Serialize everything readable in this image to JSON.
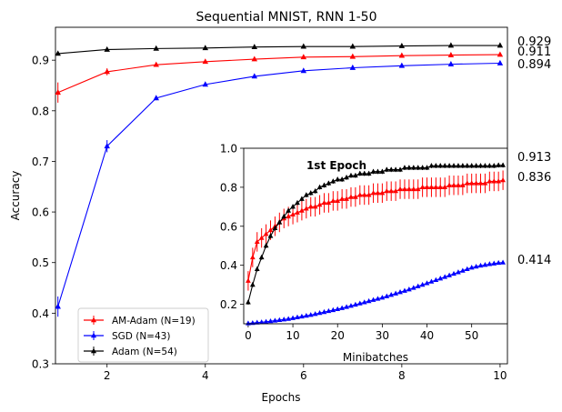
{
  "chart_data": [
    {
      "type": "line",
      "title": "Sequential MNIST, RNN 1-50",
      "xlabel": "Epochs",
      "ylabel": "Accuracy",
      "xlim": [
        0.95,
        10.15
      ],
      "ylim": [
        0.3,
        0.965
      ],
      "xticks": [
        2,
        4,
        6,
        8,
        10
      ],
      "yticks": [
        0.3,
        0.4,
        0.5,
        0.6,
        0.7,
        0.8,
        0.9
      ],
      "x": [
        1,
        2,
        3,
        4,
        5,
        6,
        7,
        8,
        9,
        10
      ],
      "series": [
        {
          "name": "AM-Adam (N=19)",
          "color": "#ff0000",
          "values": [
            0.836,
            0.877,
            0.891,
            0.897,
            0.902,
            0.906,
            0.907,
            0.909,
            0.91,
            0.911
          ],
          "errors": [
            0.02,
            0.007,
            0.004,
            0.003,
            0.003,
            0.003,
            0.002,
            0.002,
            0.002,
            0.002
          ]
        },
        {
          "name": "SGD (N=43)",
          "color": "#0000ff",
          "values": [
            0.413,
            0.73,
            0.825,
            0.852,
            0.868,
            0.879,
            0.885,
            0.889,
            0.892,
            0.894
          ],
          "errors": [
            0.02,
            0.012,
            0.004,
            0.003,
            0.003,
            0.003,
            0.003,
            0.002,
            0.002,
            0.002
          ]
        },
        {
          "name": "Adam (N=54)",
          "color": "#000000",
          "values": [
            0.913,
            0.921,
            0.923,
            0.924,
            0.926,
            0.927,
            0.927,
            0.928,
            0.929,
            0.929
          ],
          "errors": [
            0.003,
            0.002,
            0.002,
            0.002,
            0.002,
            0.002,
            0.002,
            0.002,
            0.002,
            0.002
          ]
        }
      ],
      "end_labels": [
        "0.929",
        "0.911",
        "0.894"
      ],
      "legend": "lower-left"
    },
    {
      "type": "line",
      "title": "1st Epoch",
      "xlabel": "Minibatches",
      "ylabel": "",
      "xlim": [
        -1,
        58
      ],
      "ylim": [
        0.1,
        1.0
      ],
      "xticks": [
        0,
        10,
        20,
        30,
        40,
        50
      ],
      "yticks": [
        0.2,
        0.4,
        0.6,
        0.8,
        1.0
      ],
      "x": [
        0,
        1,
        2,
        3,
        4,
        5,
        6,
        7,
        8,
        9,
        10,
        11,
        12,
        13,
        14,
        15,
        16,
        17,
        18,
        19,
        20,
        21,
        22,
        23,
        24,
        25,
        26,
        27,
        28,
        29,
        30,
        31,
        32,
        33,
        34,
        35,
        36,
        37,
        38,
        39,
        40,
        41,
        42,
        43,
        44,
        45,
        46,
        47,
        48,
        49,
        50,
        51,
        52,
        53,
        54,
        55,
        56,
        57
      ],
      "series": [
        {
          "name": "AM-Adam",
          "color": "#ff0000",
          "values": [
            0.32,
            0.44,
            0.52,
            0.54,
            0.56,
            0.58,
            0.6,
            0.62,
            0.64,
            0.65,
            0.66,
            0.67,
            0.68,
            0.69,
            0.7,
            0.7,
            0.71,
            0.72,
            0.72,
            0.73,
            0.73,
            0.74,
            0.74,
            0.75,
            0.75,
            0.76,
            0.76,
            0.76,
            0.77,
            0.77,
            0.77,
            0.78,
            0.78,
            0.78,
            0.79,
            0.79,
            0.79,
            0.79,
            0.79,
            0.8,
            0.8,
            0.8,
            0.8,
            0.8,
            0.8,
            0.81,
            0.81,
            0.81,
            0.81,
            0.82,
            0.82,
            0.82,
            0.82,
            0.82,
            0.83,
            0.83,
            0.83,
            0.836
          ],
          "error": 0.05
        },
        {
          "name": "SGD",
          "color": "#0000ff",
          "values": [
            0.102,
            0.104,
            0.106,
            0.108,
            0.11,
            0.113,
            0.116,
            0.119,
            0.122,
            0.125,
            0.129,
            0.133,
            0.137,
            0.141,
            0.145,
            0.15,
            0.155,
            0.16,
            0.165,
            0.17,
            0.175,
            0.18,
            0.186,
            0.192,
            0.198,
            0.204,
            0.21,
            0.216,
            0.222,
            0.228,
            0.234,
            0.241,
            0.248,
            0.255,
            0.262,
            0.269,
            0.276,
            0.284,
            0.292,
            0.3,
            0.308,
            0.316,
            0.324,
            0.332,
            0.34,
            0.348,
            0.356,
            0.364,
            0.372,
            0.38,
            0.388,
            0.393,
            0.398,
            0.402,
            0.406,
            0.409,
            0.412,
            0.414
          ],
          "error": 0.005
        },
        {
          "name": "Adam",
          "color": "#000000",
          "values": [
            0.21,
            0.3,
            0.38,
            0.44,
            0.5,
            0.55,
            0.59,
            0.62,
            0.65,
            0.68,
            0.7,
            0.72,
            0.74,
            0.76,
            0.77,
            0.78,
            0.8,
            0.81,
            0.82,
            0.83,
            0.84,
            0.84,
            0.85,
            0.86,
            0.86,
            0.87,
            0.87,
            0.87,
            0.88,
            0.88,
            0.88,
            0.89,
            0.89,
            0.89,
            0.89,
            0.9,
            0.9,
            0.9,
            0.9,
            0.9,
            0.9,
            0.91,
            0.91,
            0.91,
            0.91,
            0.91,
            0.91,
            0.91,
            0.91,
            0.91,
            0.91,
            0.91,
            0.91,
            0.91,
            0.91,
            0.91,
            0.913,
            0.913
          ],
          "error": 0.012
        }
      ],
      "end_labels": [
        "0.913",
        "0.836",
        "0.414"
      ]
    }
  ],
  "colors": {
    "am_adam": "#ff0000",
    "sgd": "#0000ff",
    "adam": "#000000"
  }
}
